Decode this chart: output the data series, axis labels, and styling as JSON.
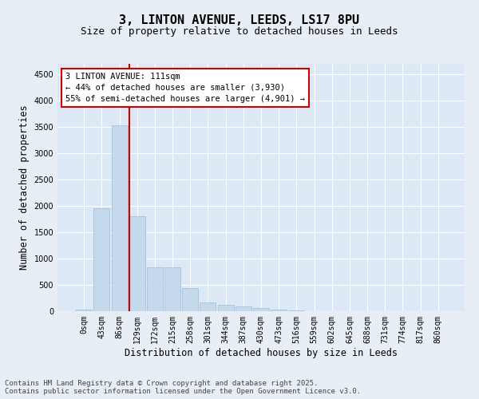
{
  "title_line1": "3, LINTON AVENUE, LEEDS, LS17 8PU",
  "title_line2": "Size of property relative to detached houses in Leeds",
  "xlabel": "Distribution of detached houses by size in Leeds",
  "ylabel": "Number of detached properties",
  "bar_labels": [
    "0sqm",
    "43sqm",
    "86sqm",
    "129sqm",
    "172sqm",
    "215sqm",
    "258sqm",
    "301sqm",
    "344sqm",
    "387sqm",
    "430sqm",
    "473sqm",
    "516sqm",
    "559sqm",
    "602sqm",
    "645sqm",
    "688sqm",
    "731sqm",
    "774sqm",
    "817sqm",
    "860sqm"
  ],
  "bar_values": [
    30,
    1950,
    3530,
    1810,
    840,
    840,
    440,
    170,
    120,
    90,
    60,
    25,
    10,
    5,
    3,
    2,
    1,
    1,
    0,
    0,
    0
  ],
  "bar_color": "#c5d9ed",
  "bar_edgecolor": "#9bbdd4",
  "vline_x": 2.58,
  "annotation_box_text": "3 LINTON AVENUE: 111sqm\n← 44% of detached houses are smaller (3,930)\n55% of semi-detached houses are larger (4,901) →",
  "vline_color": "#cc0000",
  "ylim": [
    0,
    4700
  ],
  "yticks": [
    0,
    500,
    1000,
    1500,
    2000,
    2500,
    3000,
    3500,
    4000,
    4500
  ],
  "footer_line1": "Contains HM Land Registry data © Crown copyright and database right 2025.",
  "footer_line2": "Contains public sector information licensed under the Open Government Licence v3.0.",
  "bg_color": "#e8eef5",
  "plot_bg_color": "#dce8f5",
  "grid_color": "#ffffff",
  "title_fontsize": 11,
  "subtitle_fontsize": 9,
  "tick_fontsize": 7,
  "label_fontsize": 8.5,
  "footer_fontsize": 6.5,
  "annot_fontsize": 7.5
}
